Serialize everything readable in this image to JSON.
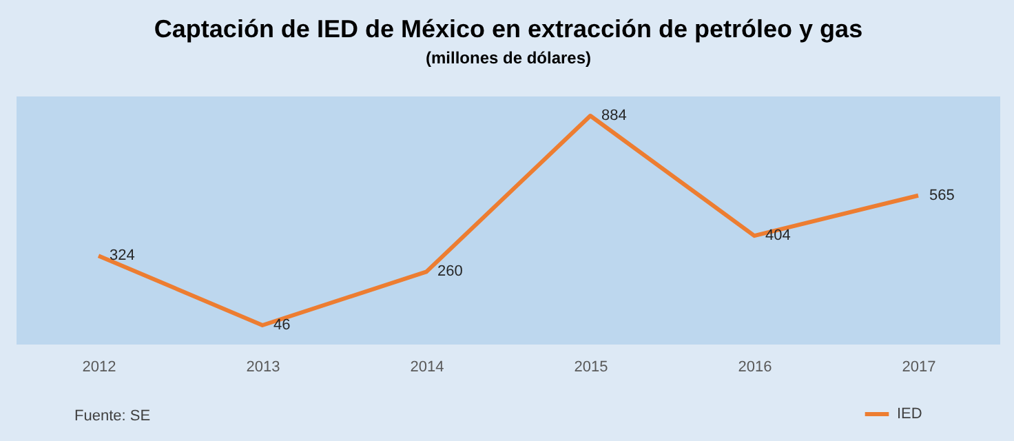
{
  "chart_data": {
    "type": "line",
    "title": "Captación de IED de México en extracción de petróleo y gas",
    "subtitle": "(millones de dólares)",
    "categories": [
      "2012",
      "2013",
      "2014",
      "2015",
      "2016",
      "2017"
    ],
    "series": [
      {
        "name": "IED",
        "color": "#ed7d31",
        "values": [
          324,
          46,
          260,
          884,
          404,
          565
        ]
      }
    ],
    "data_labels": true,
    "legend": "bottom right",
    "grid": false,
    "marker": "none",
    "annotations": [
      "Fuente: SE"
    ]
  }
}
